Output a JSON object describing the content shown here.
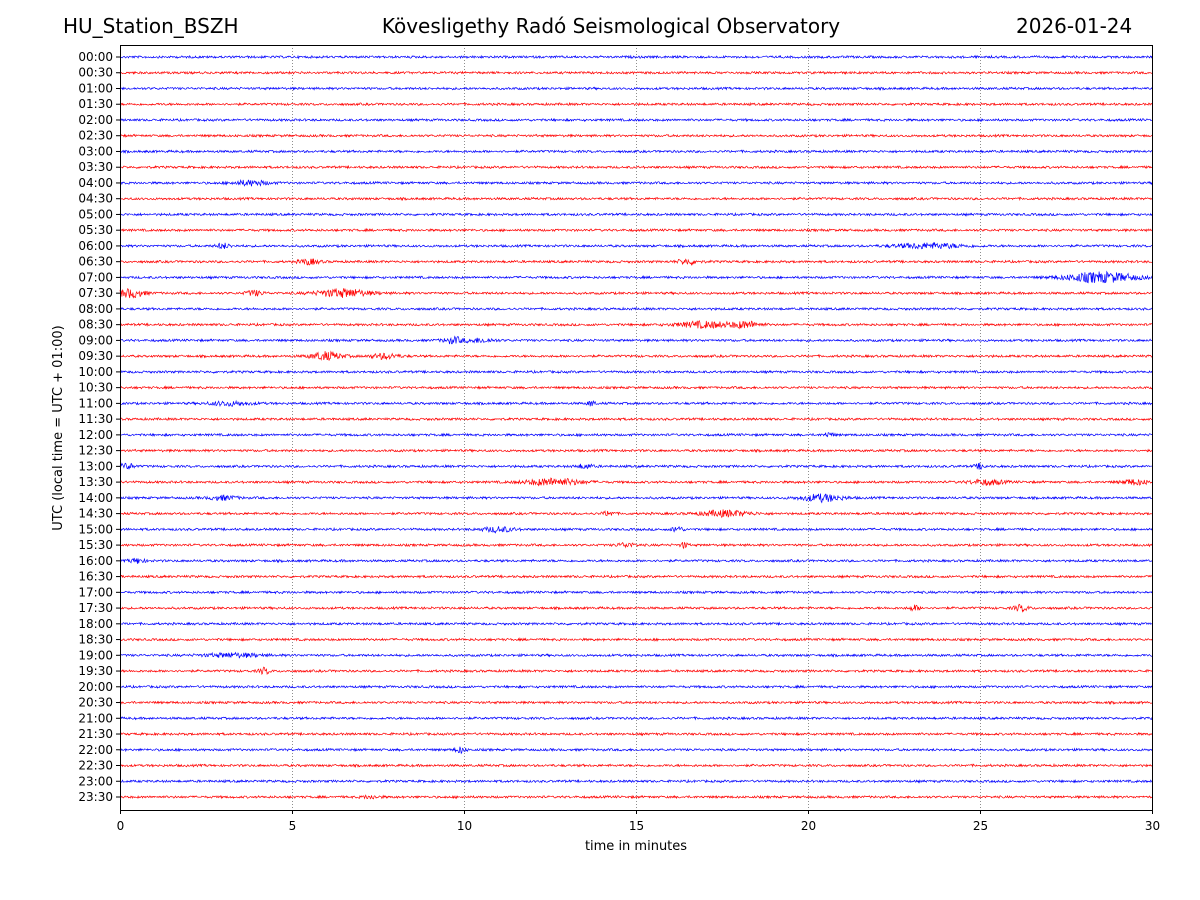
{
  "chart_data": {
    "type": "line",
    "title_left": "HU_Station_BSZH",
    "title": "Kövesligethy Radó Seismological Observatory",
    "title_right": "2026-01-24",
    "xlabel": "time in minutes",
    "ylabel": "UTC (local time = UTC + 01:00)",
    "xlim": [
      0,
      30
    ],
    "xticks": [
      "0",
      "5",
      "10",
      "15",
      "20",
      "25",
      "30"
    ],
    "xtick_values": [
      0,
      5,
      10,
      15,
      20,
      25,
      30
    ],
    "grid": "vertical-dotted",
    "colors": {
      "even": "#0000ff",
      "odd": "#ff0000"
    },
    "rows": [
      "00:00",
      "00:30",
      "01:00",
      "01:30",
      "02:00",
      "02:30",
      "03:00",
      "03:30",
      "04:00",
      "04:30",
      "05:00",
      "05:30",
      "06:00",
      "06:30",
      "07:00",
      "07:30",
      "08:00",
      "08:30",
      "09:00",
      "09:30",
      "10:00",
      "10:30",
      "11:00",
      "11:30",
      "12:00",
      "12:30",
      "13:00",
      "13:30",
      "14:00",
      "14:30",
      "15:00",
      "15:30",
      "16:00",
      "16:30",
      "17:00",
      "17:30",
      "18:00",
      "18:30",
      "19:00",
      "19:30",
      "20:00",
      "20:30",
      "21:00",
      "21:30",
      "22:00",
      "22:30",
      "23:00",
      "23:30"
    ],
    "events": [
      {
        "row": "04:00",
        "t": 3.8,
        "dur": 1.0,
        "amp": 2.5
      },
      {
        "row": "06:00",
        "t": 3.0,
        "dur": 0.4,
        "amp": 2.5
      },
      {
        "row": "06:00",
        "t": 23.5,
        "dur": 2.0,
        "amp": 2.5
      },
      {
        "row": "06:30",
        "t": 5.5,
        "dur": 0.6,
        "amp": 2.5
      },
      {
        "row": "06:30",
        "t": 16.5,
        "dur": 0.6,
        "amp": 2.5
      },
      {
        "row": "07:00",
        "t": 28.5,
        "dur": 2.0,
        "amp": 5
      },
      {
        "row": "07:30",
        "t": 0.3,
        "dur": 0.8,
        "amp": 4
      },
      {
        "row": "07:30",
        "t": 3.9,
        "dur": 0.5,
        "amp": 2.5
      },
      {
        "row": "07:30",
        "t": 6.5,
        "dur": 1.5,
        "amp": 4
      },
      {
        "row": "08:30",
        "t": 17.0,
        "dur": 1.6,
        "amp": 3
      },
      {
        "row": "08:30",
        "t": 18.2,
        "dur": 0.8,
        "amp": 3
      },
      {
        "row": "09:00",
        "t": 9.7,
        "dur": 0.6,
        "amp": 3
      },
      {
        "row": "09:00",
        "t": 10.5,
        "dur": 0.8,
        "amp": 2
      },
      {
        "row": "09:30",
        "t": 6.0,
        "dur": 0.9,
        "amp": 4
      },
      {
        "row": "09:30",
        "t": 7.7,
        "dur": 0.8,
        "amp": 2.5
      },
      {
        "row": "11:00",
        "t": 3.2,
        "dur": 1.2,
        "amp": 2
      },
      {
        "row": "11:00",
        "t": 13.7,
        "dur": 0.2,
        "amp": 3
      },
      {
        "row": "12:00",
        "t": 20.6,
        "dur": 0.3,
        "amp": 2
      },
      {
        "row": "13:00",
        "t": 0.2,
        "dur": 0.4,
        "amp": 3
      },
      {
        "row": "13:00",
        "t": 13.5,
        "dur": 0.5,
        "amp": 2
      },
      {
        "row": "13:00",
        "t": 25.0,
        "dur": 0.3,
        "amp": 2.5
      },
      {
        "row": "13:30",
        "t": 12.6,
        "dur": 1.6,
        "amp": 3.5
      },
      {
        "row": "13:30",
        "t": 25.2,
        "dur": 1.0,
        "amp": 2.5
      },
      {
        "row": "13:30",
        "t": 29.5,
        "dur": 0.8,
        "amp": 2.5
      },
      {
        "row": "14:00",
        "t": 20.4,
        "dur": 1.2,
        "amp": 3.5
      },
      {
        "row": "14:00",
        "t": 3.0,
        "dur": 0.8,
        "amp": 2
      },
      {
        "row": "14:30",
        "t": 17.6,
        "dur": 1.4,
        "amp": 3
      },
      {
        "row": "14:30",
        "t": 14.2,
        "dur": 0.3,
        "amp": 2.5
      },
      {
        "row": "15:00",
        "t": 11.0,
        "dur": 0.9,
        "amp": 2.5
      },
      {
        "row": "15:00",
        "t": 16.2,
        "dur": 0.3,
        "amp": 3
      },
      {
        "row": "15:30",
        "t": 14.7,
        "dur": 0.5,
        "amp": 2
      },
      {
        "row": "15:30",
        "t": 16.4,
        "dur": 0.2,
        "amp": 3
      },
      {
        "row": "16:00",
        "t": 0.5,
        "dur": 0.4,
        "amp": 2.5
      },
      {
        "row": "17:30",
        "t": 23.1,
        "dur": 0.3,
        "amp": 2.5
      },
      {
        "row": "17:30",
        "t": 26.2,
        "dur": 0.4,
        "amp": 3
      },
      {
        "row": "19:00",
        "t": 3.3,
        "dur": 1.6,
        "amp": 2
      },
      {
        "row": "19:30",
        "t": 4.2,
        "dur": 0.3,
        "amp": 3
      },
      {
        "row": "22:00",
        "t": 9.9,
        "dur": 0.3,
        "amp": 3
      },
      {
        "row": "23:30",
        "t": 7.3,
        "dur": 0.5,
        "amp": 1.5
      }
    ]
  }
}
